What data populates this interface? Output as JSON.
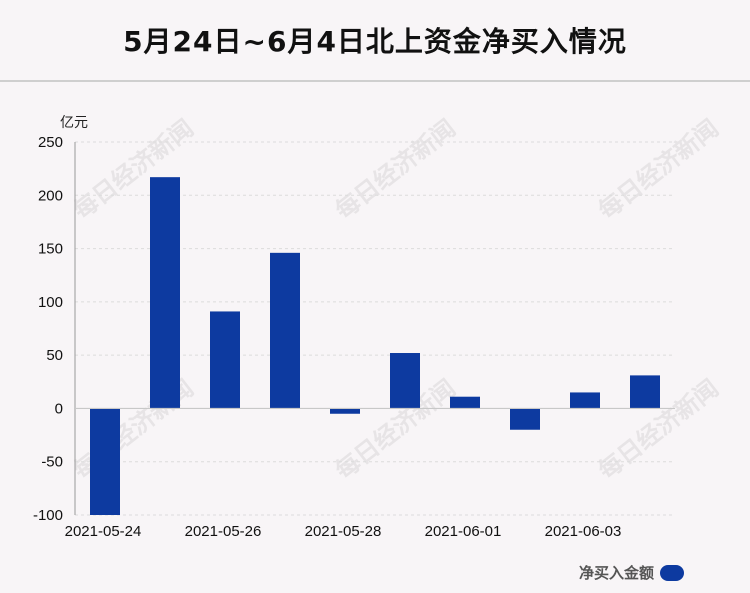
{
  "title": "5月24日~6月4日北上资金净买入情况",
  "watermark_text": "每日经济新闻",
  "legend_label": "净买入金额",
  "bar_color": "#0d3aa0",
  "chart_data": {
    "type": "bar",
    "title": "5月24日~6月4日北上资金净买入情况",
    "ylabel": "亿元",
    "xlabel": "",
    "ylim": [
      -100,
      250
    ],
    "yticks": [
      250,
      200,
      150,
      100,
      50,
      0,
      -50,
      -100
    ],
    "grid": true,
    "legend_position": "bottom-right",
    "x_tick_labels": [
      "2021-05-24",
      "2021-05-26",
      "2021-05-28",
      "2021-06-01",
      "2021-06-03"
    ],
    "categories": [
      "2021-05-24",
      "2021-05-25",
      "2021-05-26",
      "2021-05-27",
      "2021-05-28",
      "2021-05-31",
      "2021-06-01",
      "2021-06-02",
      "2021-06-03",
      "2021-06-04"
    ],
    "series": [
      {
        "name": "净买入金额",
        "values": [
          -100,
          217,
          91,
          146,
          -5,
          52,
          11,
          -20,
          15,
          31
        ]
      }
    ]
  }
}
